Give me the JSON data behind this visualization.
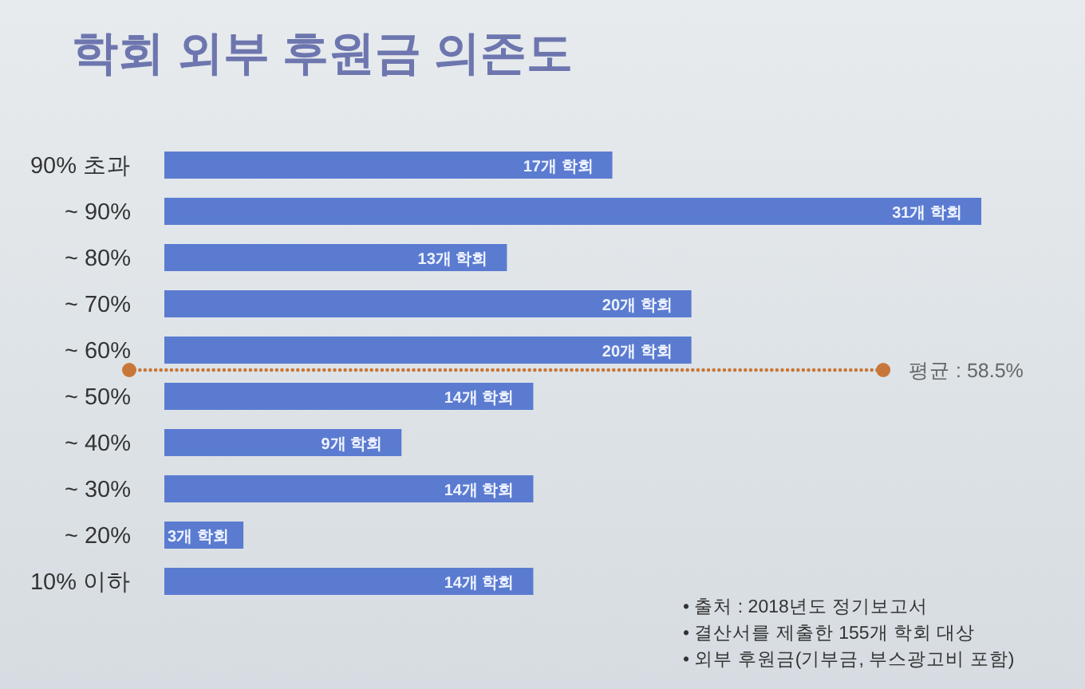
{
  "chart_data": {
    "type": "bar",
    "orientation": "horizontal",
    "title": "학회 외부 후원금 의존도",
    "categories": [
      "90% 초과",
      "~ 90%",
      "~ 80%",
      "~ 70%",
      "~ 60%",
      "~ 50%",
      "~ 40%",
      "~ 30%",
      "~ 20%",
      "10% 이하"
    ],
    "values": [
      17,
      31,
      13,
      20,
      20,
      14,
      9,
      14,
      3,
      14
    ],
    "value_labels": [
      "17개 학회",
      "31개 학회",
      "13개 학회",
      "20개 학회",
      "20개 학회",
      "14개 학회",
      "9개 학회",
      "14개 학회",
      "3개 학회",
      "14개 학회"
    ],
    "color": "#5a7bd0",
    "tick_labels": "y",
    "ref_lines": [
      {
        "axis": "y",
        "value": "~ 60%",
        "label": "평균 : 58.5%",
        "color": "#c8773a",
        "line_style": "dotted"
      }
    ],
    "annotations": [
      "• 출처 : 2018년도 정기보고서",
      "• 결산서를 제출한 155개 학회 대상",
      "• 외부 후원금(기부금, 부스광고비 포함)"
    ]
  }
}
